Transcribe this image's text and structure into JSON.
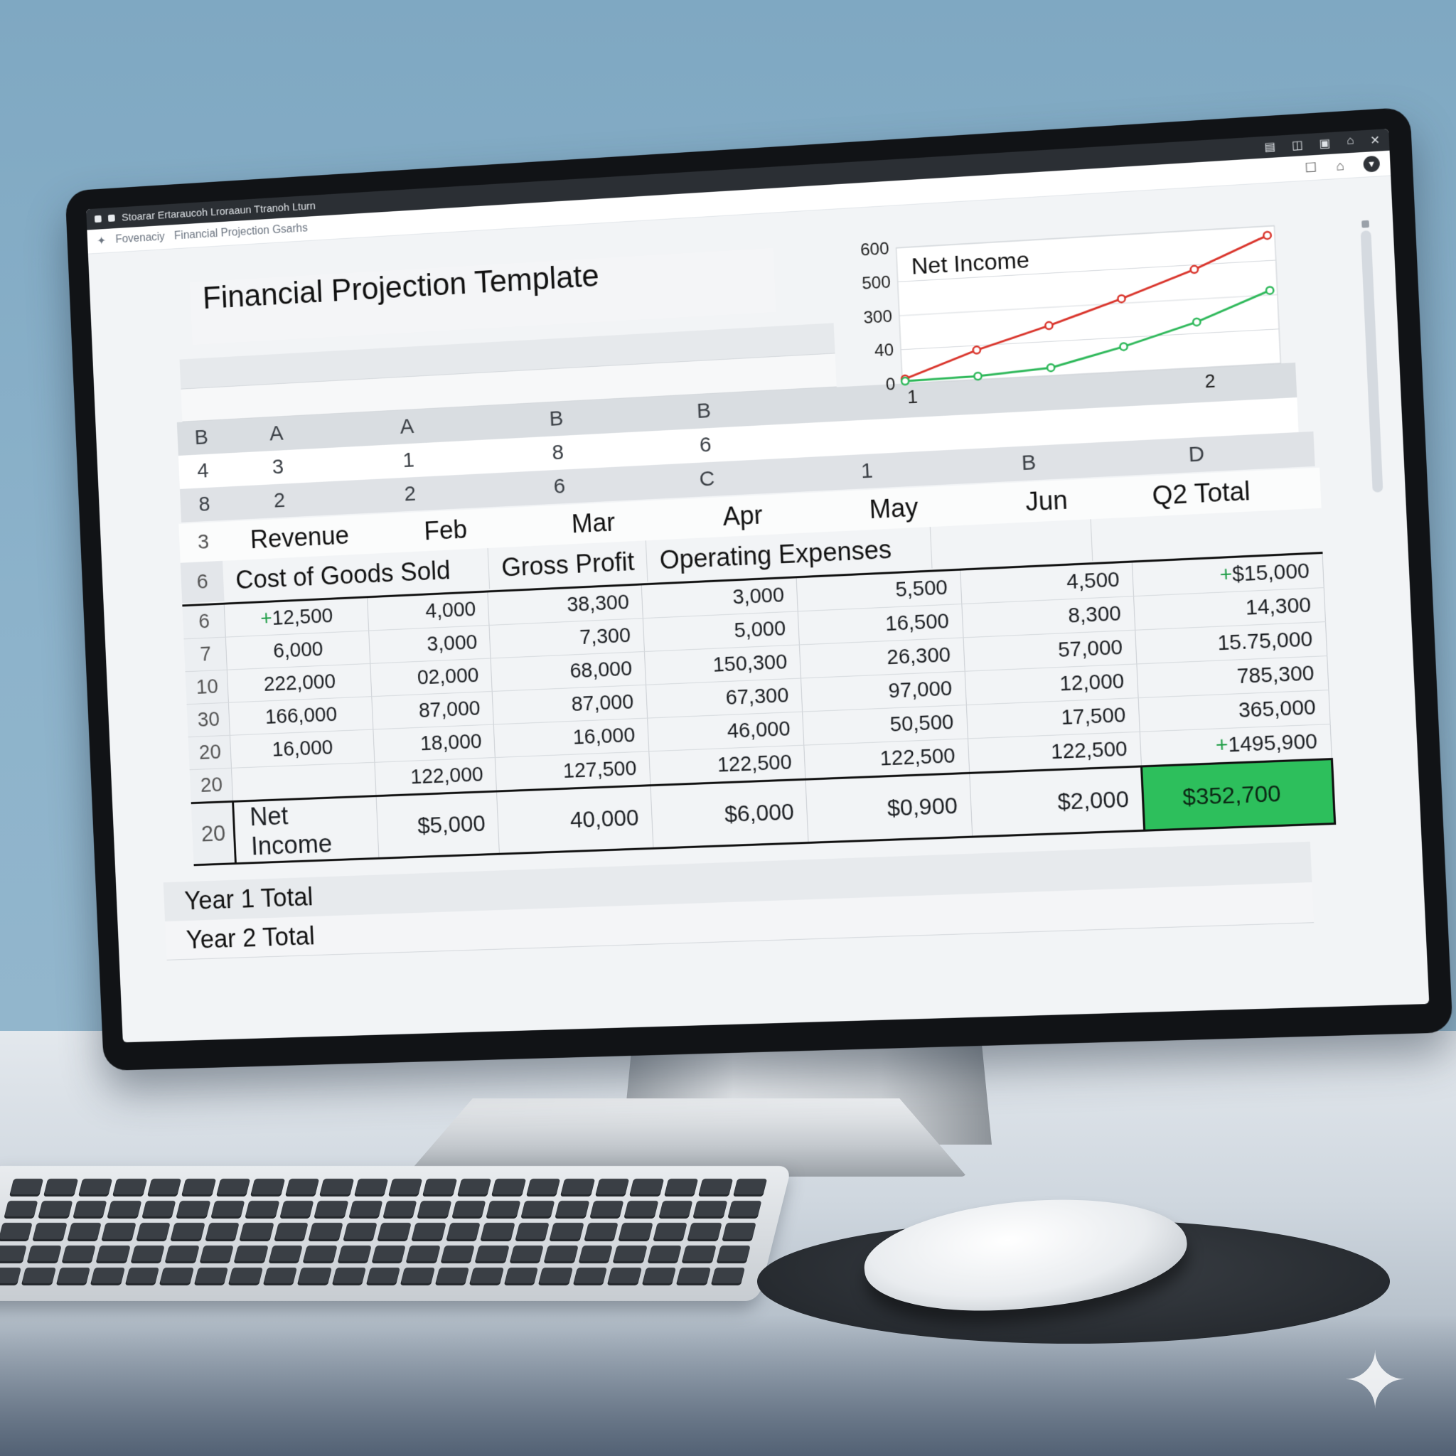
{
  "window": {
    "title": "Stoarar Ertaraucoh Lroraaun Ttranoh Lturn",
    "breadcrumb_app": "Fovenaciy",
    "breadcrumb_doc": "Financial Projection Gsarhs"
  },
  "document": {
    "title": "Financial Projection Template"
  },
  "grid_rows": [
    [
      "B",
      "A",
      "A",
      "B",
      "B"
    ],
    [
      "4",
      "3",
      "1",
      "8",
      "6"
    ],
    [
      "8",
      "2",
      "2",
      "6",
      "C",
      "1",
      "B",
      "D"
    ]
  ],
  "header_row": {
    "row_number": "3",
    "labels": [
      "Revenue",
      "Feb",
      "Mar",
      "Apr",
      "May",
      "Jun",
      "Q2 Total"
    ]
  },
  "category_row": {
    "row_number": "6",
    "labels": [
      "Cost of Goods Sold",
      "Gross Profit",
      "Operating Expenses"
    ]
  },
  "rows": [
    {
      "n": "6",
      "cells": [
        "+12,500",
        "4,000",
        "38,300",
        "3,000",
        "5,500",
        "4,500",
        "+$15,000"
      ]
    },
    {
      "n": "7",
      "cells": [
        "6,000",
        "3,000",
        "7,300",
        "5,000",
        "16,500",
        "8,300",
        "14,300"
      ]
    },
    {
      "n": "10",
      "cells": [
        "222,000",
        "02,000",
        "68,000",
        "150,300",
        "26,300",
        "57,000",
        "15.75,000"
      ]
    },
    {
      "n": "30",
      "cells": [
        "166,000",
        "87,000",
        "87,000",
        "67,300",
        "97,000",
        "12,000",
        "785,300"
      ]
    },
    {
      "n": "20",
      "cells": [
        "16,000",
        "18,000",
        "16,000",
        "46,000",
        "50,500",
        "17,500",
        "365,000"
      ]
    },
    {
      "n": "20",
      "cells": [
        "",
        "122,000",
        "127,500",
        "122,500",
        "122,500",
        "122,500",
        "+1495,900"
      ]
    }
  ],
  "net_income_row": {
    "n": "20",
    "label": "Net Income",
    "cells": [
      "$5,000",
      "40,000",
      "$6,000",
      "$0,900",
      "$2,000",
      "$352,700"
    ]
  },
  "footer": {
    "year1": "Year 1 Total",
    "year2": "Year 2 Total"
  },
  "colors": {
    "accent_green": "#2dbf5c",
    "line_red": "#d9342b",
    "line_green": "#2eb85a"
  },
  "icons": [
    "window-icon",
    "back-icon",
    "forward-icon",
    "bookmark-icon",
    "share-icon",
    "download-icon"
  ],
  "chart_data": {
    "type": "line",
    "title": "Net Income",
    "y_ticks": [
      "0",
      "40",
      "300",
      "500",
      "600"
    ],
    "x_ticks": [
      "1",
      "2"
    ],
    "series": [
      {
        "color": "#d9342b",
        "values": [
          0.2,
          1.3,
          2.2,
          3.2,
          4.3,
          5.6
        ]
      },
      {
        "color": "#2eb85a",
        "values": [
          0.1,
          0.15,
          0.35,
          1.1,
          2.0,
          3.2
        ]
      }
    ]
  }
}
